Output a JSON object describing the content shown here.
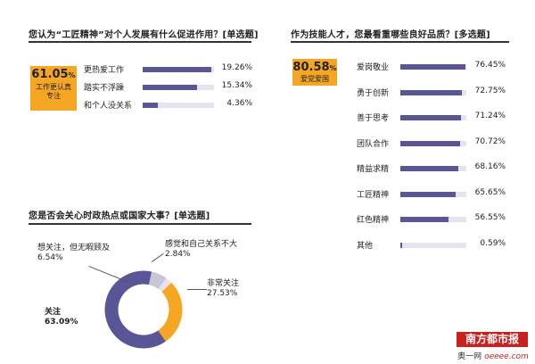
{
  "chart_data": [
    {
      "type": "bar",
      "title": "您认为“工匠精神”对个人发展有什么促进作用？[单选题]",
      "highlight": {
        "value": "61.05",
        "unit": "%",
        "label": "工作更认真专注"
      },
      "categories": [
        "更热爱工作",
        "踏实不浮躁",
        "和个人没关系"
      ],
      "values": [
        19.26,
        15.34,
        4.36
      ],
      "value_labels": [
        "19.26%",
        "15.34%",
        "4.36%"
      ],
      "xlim": [
        0,
        20
      ],
      "color": "#5a5597"
    },
    {
      "type": "bar",
      "title": "作为技能人才，您最看重哪些良好品质？[多选题]",
      "highlight": {
        "value": "80.58",
        "unit": "%",
        "label": "爱党爱国"
      },
      "categories": [
        "爱岗敬业",
        "勇于创新",
        "善于思考",
        "团队合作",
        "精益求精",
        "工匠精神",
        "红色精神",
        "其他"
      ],
      "values": [
        76.45,
        72.75,
        71.24,
        70.72,
        68.16,
        65.65,
        56.55,
        0.59
      ],
      "value_labels": [
        "76.45%",
        "72.75%",
        "71.24%",
        "70.72%",
        "68.16%",
        "65.65%",
        "56.55%",
        "0.59%"
      ],
      "xlim": [
        0,
        78
      ],
      "color": "#5a5597"
    },
    {
      "type": "pie",
      "donut": true,
      "title": "您是否会关心时政热点或国家大事？[单选题]",
      "slices": [
        {
          "label": "关注",
          "value": 63.09,
          "value_label": "63.09%",
          "color": "#5a5597"
        },
        {
          "label": "想关注，但无暇顾及",
          "value": 6.54,
          "value_label": "6.54%",
          "color": "#c8c5d8"
        },
        {
          "label": "感觉和自己关系不大",
          "value": 2.84,
          "value_label": "2.84%",
          "color": "#e6e3ee"
        },
        {
          "label": "非常关注",
          "value": 27.53,
          "value_label": "27.53%",
          "color": "#f5a623"
        }
      ]
    }
  ],
  "source": {
    "brand": "南方都市报",
    "site_prefix": "奥一网",
    "site": "oeeee.com"
  }
}
